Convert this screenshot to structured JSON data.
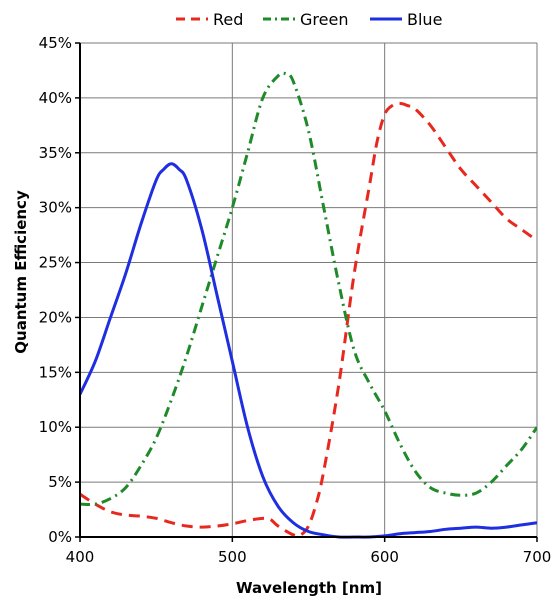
{
  "chart_data": {
    "type": "line",
    "xlabel": "Wavelength [nm]",
    "ylabel": "Quantum Efficiency",
    "xlim": [
      400,
      700
    ],
    "ylim": [
      0,
      45
    ],
    "x_ticks": [
      400,
      500,
      600,
      700
    ],
    "x_tick_labels": [
      "400",
      "500",
      "600",
      "700"
    ],
    "y_ticks": [
      0,
      5,
      10,
      15,
      20,
      25,
      30,
      35,
      40,
      45
    ],
    "y_tick_labels": [
      "0%",
      "5%",
      "10%",
      "15%",
      "20%",
      "25%",
      "30%",
      "35%",
      "40%",
      "45%"
    ],
    "grid": true,
    "legend_position": "top-center",
    "series": [
      {
        "name": "Red",
        "color": "#e8281e",
        "dash": "dashed",
        "x": [
          400,
          410,
          420,
          430,
          440,
          450,
          460,
          470,
          480,
          490,
          500,
          510,
          520,
          525,
          530,
          540,
          545,
          550,
          555,
          560,
          570,
          580,
          590,
          595,
          600,
          605,
          610,
          615,
          620,
          630,
          640,
          650,
          660,
          670,
          680,
          690,
          700
        ],
        "y": [
          3.9,
          3.0,
          2.3,
          2.0,
          1.9,
          1.7,
          1.3,
          1.0,
          0.9,
          1.0,
          1.2,
          1.5,
          1.7,
          1.6,
          1.0,
          0.2,
          0.2,
          1.0,
          3.0,
          6.0,
          14.0,
          24.0,
          32.0,
          36.0,
          38.5,
          39.3,
          39.5,
          39.3,
          39.0,
          37.5,
          35.5,
          33.5,
          32.0,
          30.5,
          29.0,
          28.0,
          27.0
        ]
      },
      {
        "name": "Green",
        "color": "#1f8a2a",
        "dash": "dash-dot",
        "x": [
          400,
          410,
          420,
          430,
          440,
          450,
          460,
          470,
          480,
          490,
          500,
          510,
          520,
          530,
          535,
          540,
          550,
          560,
          570,
          580,
          590,
          600,
          610,
          620,
          630,
          640,
          650,
          660,
          670,
          680,
          690,
          700
        ],
        "y": [
          3.0,
          3.0,
          3.5,
          4.5,
          6.5,
          9.0,
          12.5,
          16.5,
          21.0,
          25.5,
          30.0,
          35.0,
          40.0,
          42.0,
          42.2,
          41.5,
          37.0,
          30.0,
          23.0,
          17.0,
          14.0,
          11.5,
          8.5,
          6.0,
          4.5,
          4.0,
          3.8,
          4.0,
          5.0,
          6.5,
          8.0,
          10.0
        ]
      },
      {
        "name": "Blue",
        "color": "#1e2ee0",
        "dash": "solid",
        "x": [
          400,
          410,
          420,
          430,
          440,
          450,
          455,
          460,
          465,
          470,
          480,
          490,
          500,
          510,
          520,
          530,
          540,
          550,
          560,
          570,
          580,
          590,
          600,
          610,
          620,
          630,
          640,
          650,
          660,
          670,
          680,
          690,
          700
        ],
        "y": [
          13.0,
          16.0,
          20.0,
          24.0,
          28.5,
          32.5,
          33.5,
          34.0,
          33.5,
          32.5,
          28.0,
          22.0,
          16.0,
          10.0,
          5.5,
          2.8,
          1.3,
          0.5,
          0.2,
          0.0,
          0.0,
          0.0,
          0.1,
          0.3,
          0.4,
          0.5,
          0.7,
          0.8,
          0.9,
          0.8,
          0.9,
          1.1,
          1.3
        ]
      }
    ]
  }
}
